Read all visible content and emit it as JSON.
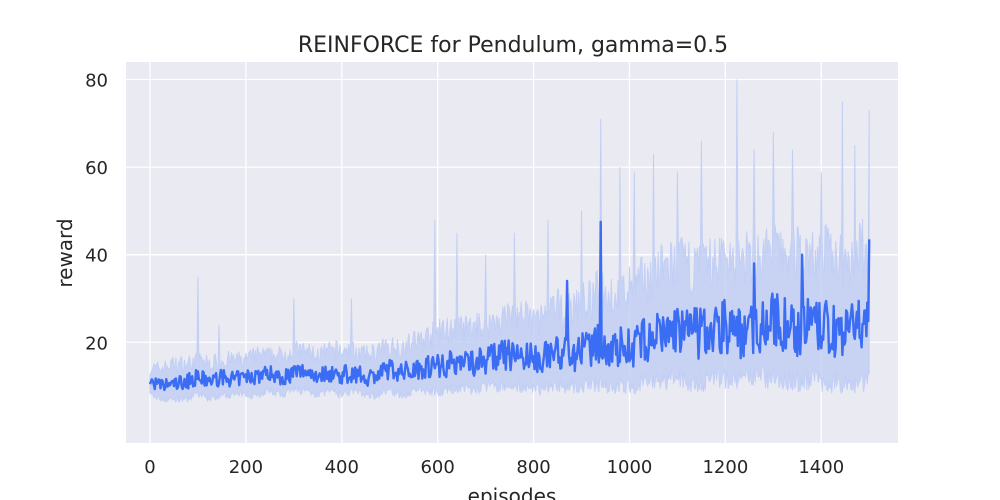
{
  "chart_data": {
    "type": "line",
    "title": "REINFORCE for Pendulum, gamma=0.5",
    "xlabel": "episodes",
    "ylabel": "reward",
    "xlim": [
      -50,
      1560
    ],
    "ylim": [
      -3,
      84
    ],
    "xticks": [
      0,
      200,
      400,
      600,
      800,
      1000,
      1200,
      1400
    ],
    "yticks": [
      20,
      40,
      60,
      80
    ],
    "grid": true,
    "background": "#eaeaf2",
    "series": [
      {
        "color": "#3a6cf4",
        "band_color": "#c2cff5",
        "x": [
          0,
          25,
          50,
          75,
          100,
          125,
          150,
          175,
          200,
          225,
          250,
          275,
          300,
          325,
          350,
          375,
          400,
          425,
          450,
          475,
          500,
          525,
          550,
          575,
          600,
          625,
          650,
          675,
          700,
          725,
          750,
          775,
          800,
          825,
          850,
          875,
          900,
          925,
          940,
          960,
          975,
          1000,
          1025,
          1050,
          1075,
          1100,
          1125,
          1150,
          1175,
          1200,
          1225,
          1250,
          1275,
          1300,
          1325,
          1350,
          1375,
          1400,
          1425,
          1450,
          1475,
          1500
        ],
        "mean": [
          11,
          10,
          10.5,
          11,
          12,
          11,
          12,
          11.5,
          12,
          12.5,
          13,
          12,
          13,
          13.5,
          12.5,
          13,
          12.5,
          13,
          12,
          12.5,
          14,
          13,
          14,
          14.5,
          15,
          15,
          16,
          15.5,
          16,
          17,
          17,
          17,
          16,
          17,
          18,
          17,
          18,
          18.5,
          20,
          18,
          19,
          19,
          20,
          21,
          22,
          23,
          22,
          22,
          23,
          24,
          22,
          23,
          24,
          25,
          24,
          23,
          24,
          23,
          23,
          22,
          23,
          27
        ],
        "upper": [
          14,
          14,
          15,
          15,
          16,
          15,
          16,
          16,
          16,
          17,
          17,
          17,
          18,
          18,
          17,
          18,
          18,
          18,
          17,
          18,
          19,
          19,
          20,
          21,
          22,
          23,
          23,
          23,
          24,
          25,
          26,
          26,
          25,
          26,
          28,
          27,
          29,
          30,
          33,
          30,
          31,
          32,
          34,
          35,
          37,
          38,
          37,
          37,
          38,
          40,
          38,
          39,
          40,
          41,
          40,
          40,
          40,
          40,
          40,
          39,
          40,
          42
        ],
        "lower": [
          8,
          7,
          7,
          7,
          8,
          7,
          8,
          8,
          8,
          8,
          9,
          8,
          9,
          9,
          8,
          9,
          8,
          9,
          8,
          8,
          9,
          8,
          9,
          9,
          9,
          9,
          10,
          9,
          10,
          10,
          10,
          10,
          9,
          10,
          10,
          10,
          10,
          10,
          11,
          10,
          10,
          10,
          11,
          11,
          11,
          12,
          11,
          11,
          12,
          12,
          11,
          12,
          12,
          12,
          12,
          11,
          12,
          11,
          11,
          11,
          11,
          12
        ],
        "peaks": [
          [
            100,
            35
          ],
          [
            145,
            24
          ],
          [
            300,
            30
          ],
          [
            420,
            30
          ],
          [
            595,
            48
          ],
          [
            640,
            45
          ],
          [
            700,
            40
          ],
          [
            760,
            45
          ],
          [
            830,
            48
          ],
          [
            900,
            50
          ],
          [
            940,
            71
          ],
          [
            980,
            60
          ],
          [
            1010,
            59
          ],
          [
            1050,
            63
          ],
          [
            1100,
            59
          ],
          [
            1150,
            66
          ],
          [
            1225,
            80
          ],
          [
            1260,
            64
          ],
          [
            1300,
            68
          ],
          [
            1340,
            64
          ],
          [
            1400,
            59
          ],
          [
            1445,
            75
          ],
          [
            1470,
            65
          ],
          [
            1500,
            73
          ]
        ],
        "mean_peaks": [
          [
            940,
            47.5
          ],
          [
            1360,
            40
          ],
          [
            1500,
            43.5
          ],
          [
            870,
            34
          ],
          [
            1260,
            38
          ]
        ]
      }
    ]
  }
}
